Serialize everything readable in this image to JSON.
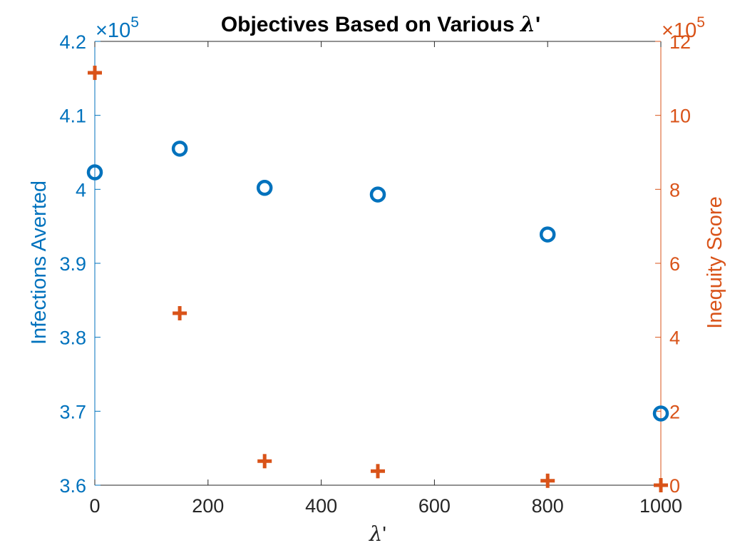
{
  "chart_data": {
    "type": "scatter",
    "title_prefix": "Objectives Based on Various ",
    "title_symbol": "λ",
    "title_suffix": "'",
    "xlabel_symbol": "λ",
    "xlabel_suffix": "'",
    "xlim": [
      0,
      1000
    ],
    "x_ticks": [
      0,
      200,
      400,
      600,
      800,
      1000
    ],
    "x_tick_labels": [
      "0",
      "200",
      "400",
      "600",
      "800",
      "1000"
    ],
    "y_left": {
      "label": "Infections Averted",
      "exponent_prefix": "×10",
      "exponent_power": "5",
      "lim": [
        3.6,
        4.2
      ],
      "ticks": [
        3.6,
        3.7,
        3.8,
        3.9,
        4.0,
        4.1,
        4.2
      ],
      "tick_labels": [
        "3.6",
        "3.7",
        "3.8",
        "3.9",
        "4",
        "4.1",
        "4.2"
      ],
      "color": "#0072BD"
    },
    "y_right": {
      "label": "Inequity Score",
      "exponent_prefix": "×10",
      "exponent_power": "5",
      "lim": [
        0,
        12
      ],
      "ticks": [
        0,
        2,
        4,
        6,
        8,
        10,
        12
      ],
      "tick_labels": [
        "0",
        "2",
        "4",
        "6",
        "8",
        "10",
        "12"
      ],
      "color": "#D95319"
    },
    "series": [
      {
        "axis": "left",
        "marker": "circle",
        "color": "#0072BD",
        "x": [
          0,
          150,
          300,
          500,
          800,
          1000
        ],
        "y": [
          4.023,
          4.055,
          4.002,
          3.993,
          3.939,
          3.697
        ]
      },
      {
        "axis": "right",
        "marker": "plus",
        "color": "#D95319",
        "x": [
          0,
          150,
          300,
          500,
          800,
          1000
        ],
        "y": [
          11.15,
          4.65,
          0.65,
          0.38,
          0.12,
          0.0
        ]
      }
    ],
    "grid": false,
    "legend": "none"
  }
}
